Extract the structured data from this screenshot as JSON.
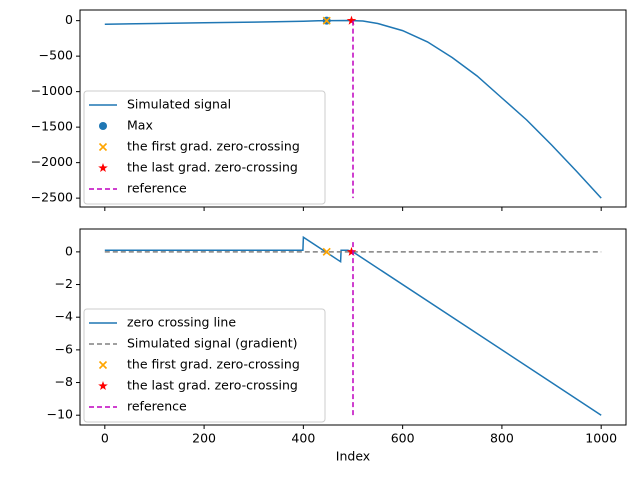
{
  "chart_data": [
    {
      "type": "line",
      "xlim": [
        -50,
        1050
      ],
      "ylim": [
        -2625,
        150
      ],
      "xticks": [
        0,
        200,
        400,
        600,
        800,
        1000
      ],
      "yticks": [
        0,
        {
          "value": -500,
          "label": "−500"
        },
        {
          "value": -1000,
          "label": "−1000"
        },
        {
          "value": -1500,
          "label": "−1500"
        },
        {
          "value": -2000,
          "label": "−2000"
        },
        {
          "value": -2500,
          "label": "−2500"
        }
      ],
      "legend": "lower left",
      "series": [
        {
          "name": "Simulated signal",
          "color": "#1f77b4",
          "style": "line",
          "x": [
            0,
            100,
            200,
            300,
            400,
            430,
            460,
            490,
            520,
            550,
            600,
            650,
            700,
            750,
            800,
            850,
            900,
            950,
            1000
          ],
          "values": [
            -50,
            -40,
            -30,
            -20,
            -8,
            -2,
            1,
            2,
            -5,
            -40,
            -140,
            -300,
            -520,
            -780,
            -1090,
            -1400,
            -1750,
            -2120,
            -2500
          ]
        },
        {
          "name": "Max",
          "color": "#1f77b4",
          "style": "circle",
          "x": [
            447
          ],
          "values": [
            0
          ]
        },
        {
          "name": "the first grad. zero-crossing",
          "color": "#ffa500",
          "style": "x",
          "x": [
            447
          ],
          "values": [
            0
          ]
        },
        {
          "name": "the last grad. zero-crossing",
          "color": "#ff0000",
          "style": "star",
          "x": [
            497
          ],
          "values": [
            0
          ]
        },
        {
          "name": "reference",
          "color": "#bf00bf",
          "style": "dashed",
          "x": [
            500,
            500
          ],
          "values": [
            0,
            -2500
          ]
        }
      ]
    },
    {
      "type": "line",
      "xlim": [
        -50,
        1050
      ],
      "ylim": [
        -10.6,
        1.4
      ],
      "xlabel": "Index",
      "xticks": [
        0,
        200,
        400,
        600,
        800,
        1000
      ],
      "yticks": [
        0,
        {
          "value": -2,
          "label": "−2"
        },
        {
          "value": -4,
          "label": "−4"
        },
        {
          "value": -6,
          "label": "−6"
        },
        {
          "value": -8,
          "label": "−8"
        },
        {
          "value": -10,
          "label": "−10"
        }
      ],
      "legend": "lower left",
      "series": [
        {
          "name": "zero crossing line",
          "color": "#1f77b4",
          "style": "line",
          "x": [
            0,
            399,
            400,
            475,
            476,
            490,
            500,
            1000
          ],
          "values": [
            0.1,
            0.1,
            0.9,
            -0.6,
            0.1,
            0.1,
            0,
            -10
          ]
        },
        {
          "name": "Simulated signal (gradient)",
          "color": "#808080",
          "style": "dashed",
          "x": [
            0,
            1000
          ],
          "values": [
            0,
            0
          ]
        },
        {
          "name": "the first grad. zero-crossing",
          "color": "#ffa500",
          "style": "x",
          "x": [
            447
          ],
          "values": [
            0
          ]
        },
        {
          "name": "the last grad. zero-crossing",
          "color": "#ff0000",
          "style": "star",
          "x": [
            497
          ],
          "values": [
            0
          ]
        },
        {
          "name": "reference",
          "color": "#bf00bf",
          "style": "dashed",
          "x": [
            500,
            500
          ],
          "values": [
            0.6,
            -10
          ]
        }
      ]
    }
  ]
}
